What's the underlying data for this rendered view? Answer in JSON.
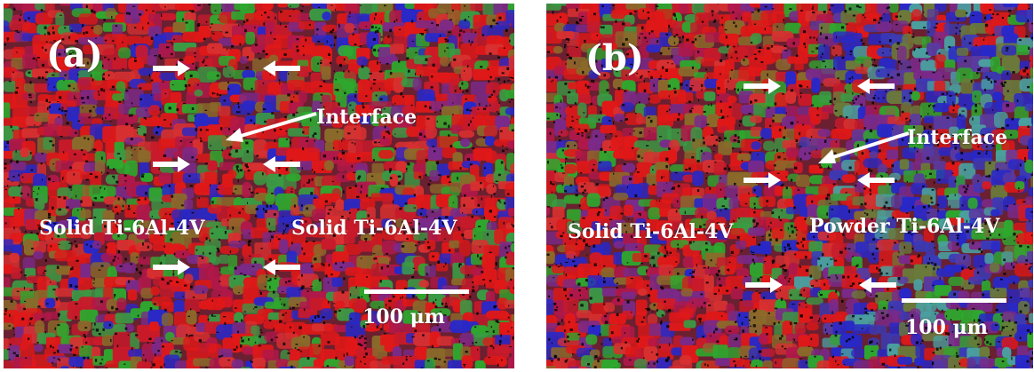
{
  "figure": {
    "panels": [
      {
        "id": "a",
        "label": "(a)",
        "left_material": "Solid Ti-6Al-4V",
        "right_material": "Solid Ti-6Al-4V",
        "interface_label": "Interface",
        "scale_label": "100 μm"
      },
      {
        "id": "b",
        "label": "(b)",
        "left_material": "Solid Ti-6Al-4V",
        "right_material": "Powder Ti-6Al-4V",
        "interface_label": "Interface",
        "scale_label": "100 μm"
      }
    ],
    "colors": {
      "grain_red": "#e01818",
      "grain_green": "#2ea82e",
      "grain_blue": "#2828c8",
      "grain_purple": "#7a2a8a",
      "annotation": "#ffffff",
      "unindexed": "#000000"
    },
    "icons": [
      "arrow-right-icon",
      "arrow-left-icon",
      "interface-pointer-arrow-icon"
    ]
  }
}
